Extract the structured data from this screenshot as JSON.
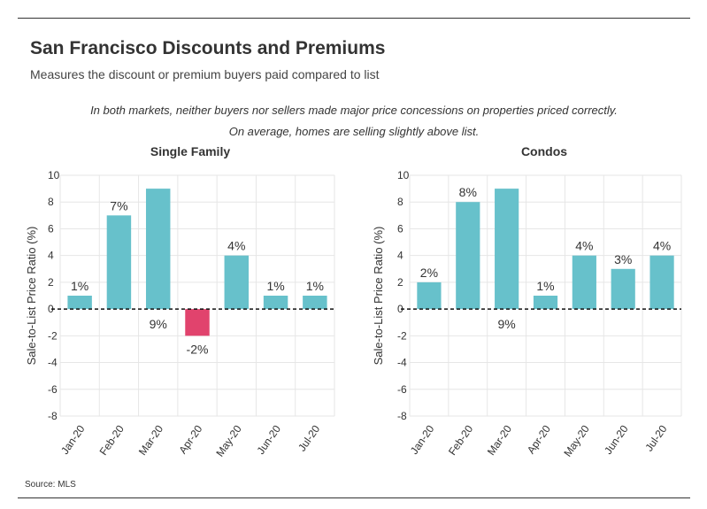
{
  "header": {
    "title": "San Francisco Discounts and Premiums",
    "subtitle": "Measures the discount or premium buyers paid compared to list"
  },
  "annotation": "In both markets, neither buyers nor sellers made major price concessions on properties priced correctly. On average, homes are selling slightly above list.",
  "footer": {
    "source": "Source:  MLS"
  },
  "colors": {
    "positive": "#67c1cb",
    "negative": "#e1436d",
    "grid": "#e6e6e6",
    "text": "#333333"
  },
  "chart_data": [
    {
      "type": "bar",
      "title": "Single Family",
      "ylabel": "Sale-to-List Price Ratio (%)",
      "ylim": [
        -8,
        10
      ],
      "yticks": [
        10,
        8,
        6,
        4,
        2,
        0,
        -2,
        -4,
        -6,
        -8
      ],
      "grid": true,
      "categories": [
        "Jan-20",
        "Feb-20",
        "Mar-20",
        "Apr-20",
        "May-20",
        "Jun-20",
        "Jul-20"
      ],
      "values": [
        1,
        7,
        9,
        -2,
        4,
        1,
        1
      ],
      "labels": [
        "1%",
        "7%",
        "9%",
        "-2%",
        "4%",
        "1%",
        "1%"
      ],
      "label_position": [
        "above",
        "above",
        "below_axis",
        "below",
        "above",
        "above",
        "above"
      ]
    },
    {
      "type": "bar",
      "title": "Condos",
      "ylabel": "Sale-to-List Price Ratio (%)",
      "ylim": [
        -8,
        10
      ],
      "yticks": [
        10,
        8,
        6,
        4,
        2,
        0,
        -2,
        -4,
        -6,
        -8
      ],
      "grid": true,
      "categories": [
        "Jan-20",
        "Feb-20",
        "Mar-20",
        "Apr-20",
        "May-20",
        "Jun-20",
        "Jul-20"
      ],
      "values": [
        2,
        8,
        9,
        1,
        4,
        3,
        4
      ],
      "labels": [
        "2%",
        "8%",
        "9%",
        "1%",
        "4%",
        "3%",
        "4%"
      ],
      "label_position": [
        "above",
        "above",
        "below_axis",
        "above",
        "above",
        "above",
        "above"
      ]
    }
  ]
}
